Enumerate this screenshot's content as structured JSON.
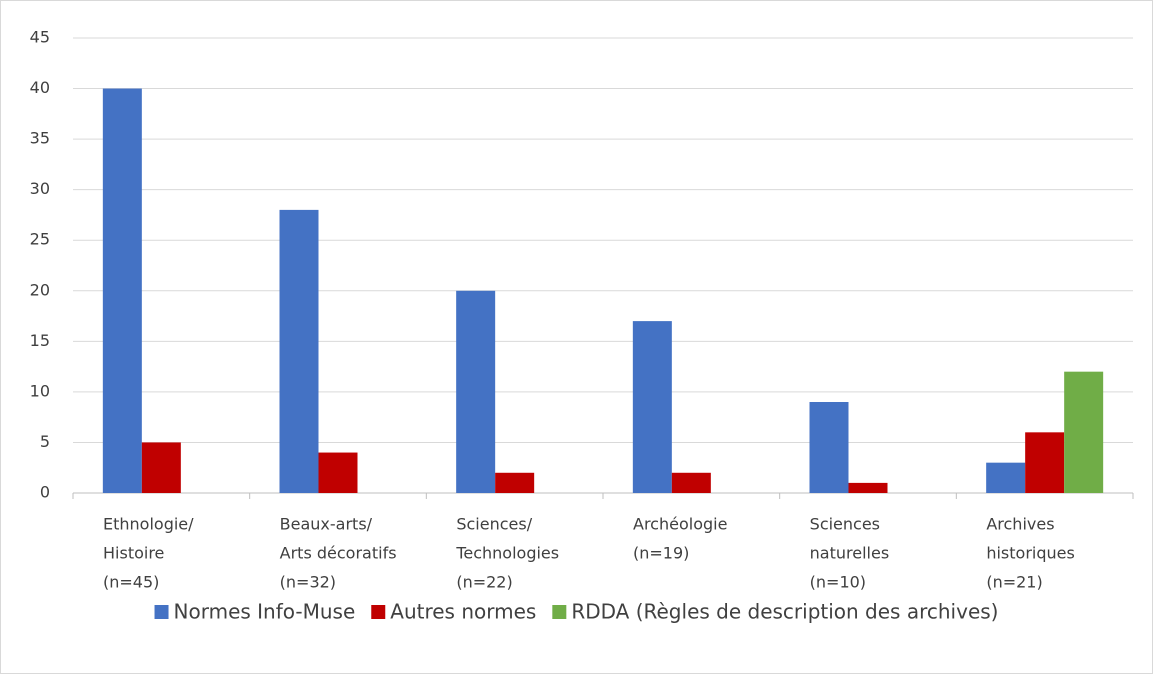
{
  "chart_data": {
    "type": "bar",
    "categories": [
      [
        "Ethnologie/",
        "Histoire",
        "(n=45)"
      ],
      [
        "Beaux-arts/",
        "Arts décoratifs",
        "(n=32)"
      ],
      [
        "Sciences/",
        "Technologies",
        "(n=22)"
      ],
      [
        "Archéologie",
        "(n=19)"
      ],
      [
        "Sciences",
        "naturelles",
        "(n=10)"
      ],
      [
        "Archives",
        "historiques",
        "(n=21)"
      ]
    ],
    "series": [
      {
        "name": "Normes Info-Muse",
        "color": "#4472c4",
        "values": [
          40,
          28,
          20,
          17,
          9,
          3
        ]
      },
      {
        "name": "Autres normes",
        "color": "#c00000",
        "values": [
          5,
          4,
          2,
          2,
          1,
          6
        ]
      },
      {
        "name": "RDDA (Règles de description des archives)",
        "color": "#70ad47",
        "values": [
          null,
          null,
          null,
          null,
          null,
          12
        ]
      }
    ],
    "ylim": [
      0,
      45
    ],
    "yticks": [
      0,
      5,
      10,
      15,
      20,
      25,
      30,
      35,
      40,
      45
    ],
    "grid": true,
    "legend": "bottom"
  }
}
